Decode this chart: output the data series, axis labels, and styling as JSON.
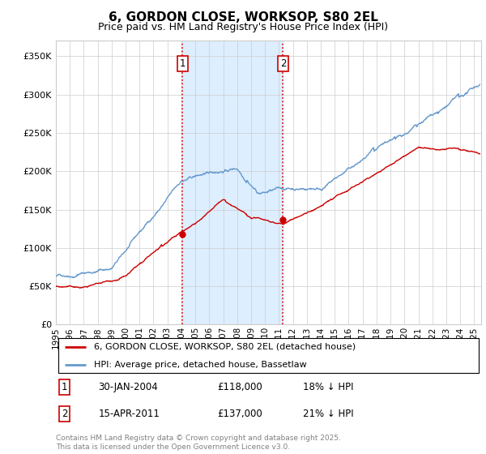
{
  "title": "6, GORDON CLOSE, WORKSOP, S80 2EL",
  "subtitle": "Price paid vs. HM Land Registry's House Price Index (HPI)",
  "ylabel_ticks": [
    "£0",
    "£50K",
    "£100K",
    "£150K",
    "£200K",
    "£250K",
    "£300K",
    "£350K"
  ],
  "ytick_vals": [
    0,
    50000,
    100000,
    150000,
    200000,
    250000,
    300000,
    350000
  ],
  "ylim": [
    0,
    370000
  ],
  "xlim_start": 1995.0,
  "xlim_end": 2025.5,
  "marker1_date": 2004.08,
  "marker2_date": 2011.29,
  "marker1_price": 118000,
  "marker2_price": 137000,
  "marker1_label": "1",
  "marker2_label": "2",
  "shade_color": "#ddeeff",
  "dashed_color": "#dd0000",
  "legend_line1": "6, GORDON CLOSE, WORKSOP, S80 2EL (detached house)",
  "legend_line2": "HPI: Average price, detached house, Bassetlaw",
  "table_row1": [
    "1",
    "30-JAN-2004",
    "£118,000",
    "18% ↓ HPI"
  ],
  "table_row2": [
    "2",
    "15-APR-2011",
    "£137,000",
    "21% ↓ HPI"
  ],
  "footnote": "Contains HM Land Registry data © Crown copyright and database right 2025.\nThis data is licensed under the Open Government Licence v3.0.",
  "red_line_color": "#cc0000",
  "blue_line_color": "#6699cc",
  "dot_color": "#cc0000"
}
